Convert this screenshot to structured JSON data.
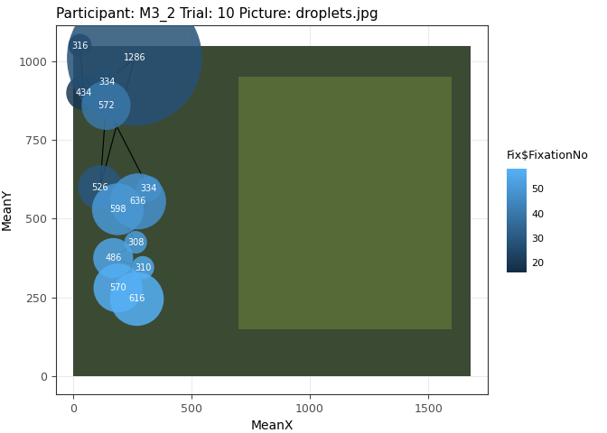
{
  "chart_data": {
    "type": "scatter",
    "title": "Participant: M3_2 Trial: 10 Picture: droplets.jpg",
    "x_label": "MeanX",
    "y_label": "MeanY",
    "x": [
      30,
      45,
      145,
      260,
      115,
      140,
      320,
      275,
      190,
      265,
      170,
      295,
      190,
      270
    ],
    "values": [
      1050,
      900,
      935,
      1010,
      600,
      860,
      595,
      555,
      530,
      425,
      375,
      345,
      280,
      245
    ],
    "durations": [
      316,
      434,
      334,
      1286,
      526,
      572,
      334,
      636,
      598,
      308,
      486,
      310,
      570,
      616
    ],
    "fixation_no": [
      17,
      20,
      24,
      28,
      30,
      40,
      46,
      48,
      50,
      52,
      54,
      55,
      57,
      58
    ],
    "colorbar_label": "Fix$FixationNo",
    "color_range": [
      16,
      58
    ],
    "color_ticks": [
      20,
      30,
      40,
      50
    ],
    "xlim": [
      -72,
      1752
    ],
    "ylim": [
      -57,
      1115
    ],
    "xticks": [
      0,
      500,
      1000,
      1500
    ],
    "yticks": [
      0,
      250,
      500,
      750,
      1000
    ],
    "grid": true,
    "data_labels": true
  }
}
